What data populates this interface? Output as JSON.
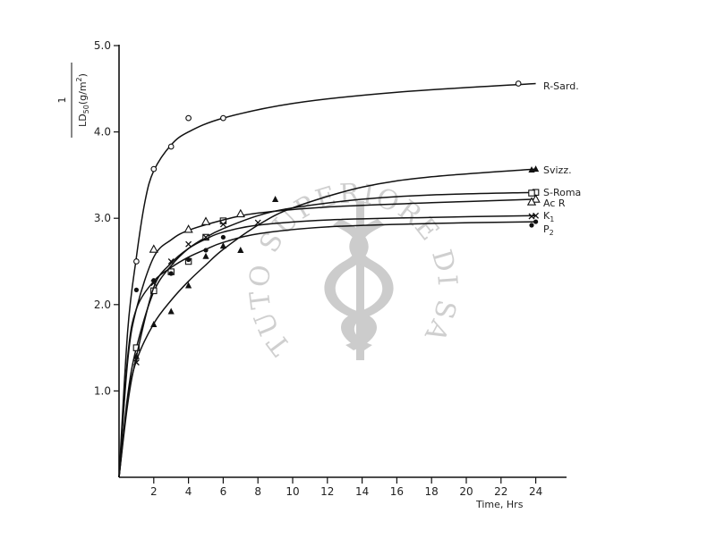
{
  "chart_data": {
    "type": "line",
    "xlabel": "Time, Hrs",
    "ylabel": {
      "numerator": "1",
      "denominator_prefix": "LD",
      "denominator_sub": "50",
      "denominator_suffix": "(g/m",
      "denominator_sup": "2",
      "denominator_close": ")"
    },
    "xlim": [
      0,
      24
    ],
    "ylim": [
      0,
      5
    ],
    "x_ticks": [
      2,
      4,
      6,
      8,
      10,
      12,
      14,
      16,
      18,
      20,
      22,
      24
    ],
    "x_tick_labels": [
      "2",
      "4",
      "6",
      "8",
      "10",
      "12",
      "14",
      "16",
      "18",
      "20",
      "22",
      "24"
    ],
    "y_ticks": [
      1,
      2,
      3,
      4,
      5
    ],
    "y_tick_labels": [
      "1.0",
      "2.0",
      "3.0",
      "4.0",
      "5.0"
    ],
    "grid": false,
    "legend": "inline labels at right end of curves",
    "series": [
      {
        "name": "R-Sard.",
        "marker": "circle-open",
        "points": [
          [
            1,
            2.5
          ],
          [
            2,
            3.57
          ],
          [
            3,
            3.83
          ],
          [
            4,
            4.16
          ],
          [
            6,
            4.16
          ],
          [
            23,
            4.56
          ]
        ],
        "curve": [
          [
            0,
            0
          ],
          [
            0.5,
            1.7
          ],
          [
            1,
            2.55
          ],
          [
            1.5,
            3.2
          ],
          [
            2,
            3.55
          ],
          [
            3,
            3.85
          ],
          [
            4,
            4.0
          ],
          [
            6,
            4.16
          ],
          [
            10,
            4.33
          ],
          [
            16,
            4.46
          ],
          [
            24,
            4.56
          ]
        ]
      },
      {
        "name": "Svizz.",
        "marker": "triangle-filled",
        "points": [
          [
            1,
            1.4
          ],
          [
            2,
            1.77
          ],
          [
            3,
            1.92
          ],
          [
            4,
            2.22
          ],
          [
            5,
            2.56
          ],
          [
            6,
            2.68
          ],
          [
            7,
            2.63
          ],
          [
            9,
            3.22
          ],
          [
            24,
            3.57
          ]
        ],
        "curve": [
          [
            0,
            0
          ],
          [
            0.5,
            0.9
          ],
          [
            1,
            1.35
          ],
          [
            2,
            1.78
          ],
          [
            3,
            2.05
          ],
          [
            4,
            2.27
          ],
          [
            5,
            2.46
          ],
          [
            6,
            2.64
          ],
          [
            8,
            2.92
          ],
          [
            10,
            3.12
          ],
          [
            14,
            3.36
          ],
          [
            18,
            3.48
          ],
          [
            24,
            3.57
          ]
        ]
      },
      {
        "name": "S-Roma",
        "marker": "square-open",
        "points": [
          [
            1,
            1.5
          ],
          [
            2,
            2.16
          ],
          [
            3,
            2.38
          ],
          [
            4,
            2.5
          ],
          [
            5,
            2.78
          ],
          [
            6,
            2.97
          ],
          [
            24,
            3.3
          ]
        ],
        "curve": [
          [
            0,
            0
          ],
          [
            0.5,
            0.95
          ],
          [
            1,
            1.5
          ],
          [
            2,
            2.15
          ],
          [
            3,
            2.45
          ],
          [
            4,
            2.65
          ],
          [
            5,
            2.78
          ],
          [
            6,
            2.88
          ],
          [
            8,
            3.03
          ],
          [
            10,
            3.12
          ],
          [
            14,
            3.22
          ],
          [
            18,
            3.27
          ],
          [
            24,
            3.3
          ]
        ]
      },
      {
        "name": "Ac R",
        "marker": "triangle-open",
        "points": [
          [
            2,
            2.64
          ],
          [
            4,
            2.87
          ],
          [
            5,
            2.96
          ],
          [
            7,
            3.05
          ],
          [
            24,
            3.22
          ]
        ],
        "curve": [
          [
            0,
            0
          ],
          [
            0.5,
            1.35
          ],
          [
            1,
            1.95
          ],
          [
            2,
            2.55
          ],
          [
            3,
            2.75
          ],
          [
            4,
            2.86
          ],
          [
            6,
            2.98
          ],
          [
            8,
            3.06
          ],
          [
            12,
            3.13
          ],
          [
            18,
            3.18
          ],
          [
            24,
            3.22
          ]
        ]
      },
      {
        "name": "K",
        "name_sub": "1",
        "marker": "cross",
        "points": [
          [
            1,
            1.33
          ],
          [
            2,
            2.25
          ],
          [
            3,
            2.5
          ],
          [
            4,
            2.7
          ],
          [
            5,
            2.78
          ],
          [
            6,
            2.93
          ],
          [
            8,
            2.95
          ],
          [
            24,
            3.03
          ]
        ],
        "curve": [
          [
            0,
            0
          ],
          [
            0.5,
            0.85
          ],
          [
            1,
            1.4
          ],
          [
            2,
            2.2
          ],
          [
            3,
            2.48
          ],
          [
            4,
            2.65
          ],
          [
            5,
            2.76
          ],
          [
            6,
            2.84
          ],
          [
            8,
            2.92
          ],
          [
            12,
            2.98
          ],
          [
            18,
            3.01
          ],
          [
            24,
            3.03
          ]
        ]
      },
      {
        "name": "P",
        "name_sub": "2",
        "marker": "circle-filled",
        "points": [
          [
            1,
            2.17
          ],
          [
            2,
            2.28
          ],
          [
            3,
            2.36
          ],
          [
            4,
            2.52
          ],
          [
            5,
            2.63
          ],
          [
            6,
            2.78
          ],
          [
            24,
            2.96
          ]
        ],
        "curve": [
          [
            0,
            0
          ],
          [
            0.5,
            1.4
          ],
          [
            1,
            1.95
          ],
          [
            2,
            2.27
          ],
          [
            3,
            2.43
          ],
          [
            4,
            2.55
          ],
          [
            5,
            2.64
          ],
          [
            6,
            2.72
          ],
          [
            8,
            2.82
          ],
          [
            12,
            2.9
          ],
          [
            18,
            2.94
          ],
          [
            24,
            2.96
          ]
        ]
      }
    ]
  },
  "watermark": {
    "text": "ISTITUTO SUPERIORE DI SANITÀ"
  }
}
